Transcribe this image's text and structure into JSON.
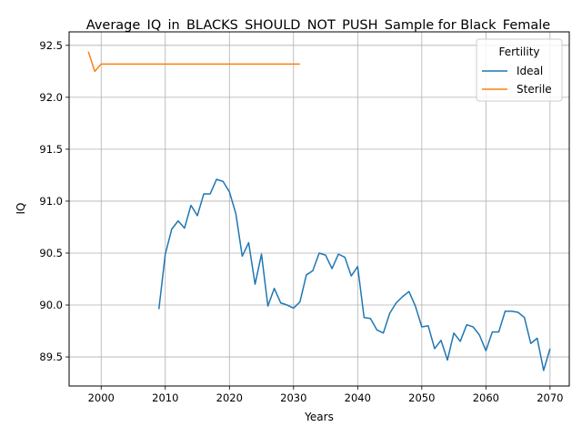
{
  "chart_data": {
    "type": "line",
    "title": "Average_IQ_in_BLACKS_SHOULD_NOT_PUSH_Sample for Black_Female",
    "xlabel": "Years",
    "ylabel": "IQ",
    "xlim": [
      1995,
      2073
    ],
    "ylim": [
      89.22,
      92.63
    ],
    "xticks": [
      2000,
      2010,
      2020,
      2030,
      2040,
      2050,
      2060,
      2070
    ],
    "xtick_labels": [
      "2000",
      "2010",
      "2020",
      "2030",
      "2040",
      "2050",
      "2060",
      "2070"
    ],
    "yticks": [
      89.5,
      90.0,
      90.5,
      91.0,
      91.5,
      92.0,
      92.5
    ],
    "ytick_labels": [
      "89.5",
      "90.0",
      "90.5",
      "91.0",
      "91.5",
      "92.0",
      "92.5"
    ],
    "grid": true,
    "legend": {
      "title": "Fertility",
      "placement": "top-right"
    },
    "series": [
      {
        "name": "Ideal",
        "color": "#1f77b4",
        "x": [
          2009,
          2010,
          2011,
          2012,
          2013,
          2014,
          2015,
          2016,
          2017,
          2018,
          2019,
          2020,
          2021,
          2022,
          2023,
          2024,
          2025,
          2026,
          2027,
          2028,
          2029,
          2030,
          2031,
          2032,
          2033,
          2034,
          2035,
          2036,
          2037,
          2038,
          2039,
          2040,
          2041,
          2042,
          2043,
          2044,
          2045,
          2046,
          2047,
          2048,
          2049,
          2050,
          2051,
          2052,
          2053,
          2054,
          2055,
          2056,
          2057,
          2058,
          2059,
          2060,
          2061,
          2062,
          2063,
          2064,
          2065,
          2066,
          2067,
          2068,
          2069,
          2070
        ],
        "y": [
          89.96,
          90.49,
          90.73,
          90.81,
          90.74,
          90.96,
          90.86,
          91.07,
          91.07,
          91.21,
          91.19,
          91.09,
          90.88,
          90.47,
          90.6,
          90.2,
          90.49,
          89.99,
          90.16,
          90.02,
          90.0,
          89.97,
          90.03,
          90.29,
          90.33,
          90.5,
          90.48,
          90.35,
          90.49,
          90.46,
          90.28,
          90.37,
          89.88,
          89.87,
          89.76,
          89.73,
          89.92,
          90.02,
          90.08,
          90.13,
          89.99,
          89.79,
          89.8,
          89.58,
          89.66,
          89.47,
          89.73,
          89.65,
          89.81,
          89.79,
          89.71,
          89.56,
          89.74,
          89.74,
          89.94,
          89.94,
          89.93,
          89.88,
          89.63,
          89.68,
          89.37,
          89.58
        ]
      },
      {
        "name": "Sterile",
        "color": "#ff7f0e",
        "x": [
          1998,
          1999,
          2000,
          2001,
          2002,
          2003,
          2004,
          2005,
          2006,
          2007,
          2008,
          2009,
          2010,
          2011,
          2012,
          2013,
          2014,
          2015,
          2016,
          2017,
          2018,
          2019,
          2020,
          2021,
          2022,
          2023,
          2024,
          2025,
          2026,
          2027,
          2028,
          2029,
          2030,
          2031
        ],
        "y": [
          92.44,
          92.25,
          92.32,
          92.32,
          92.32,
          92.32,
          92.32,
          92.32,
          92.32,
          92.32,
          92.32,
          92.32,
          92.32,
          92.32,
          92.32,
          92.32,
          92.32,
          92.32,
          92.32,
          92.32,
          92.32,
          92.32,
          92.32,
          92.32,
          92.32,
          92.32,
          92.32,
          92.32,
          92.32,
          92.32,
          92.32,
          92.32,
          92.32,
          92.32
        ]
      }
    ]
  }
}
